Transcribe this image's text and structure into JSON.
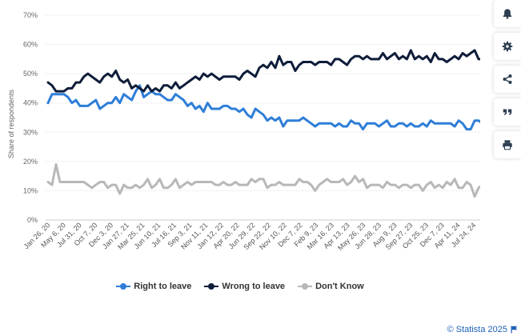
{
  "chart_data": {
    "type": "line",
    "ylabel": "Share of respondents",
    "yticks": [
      "0%",
      "10%",
      "20%",
      "30%",
      "40%",
      "50%",
      "60%",
      "70%"
    ],
    "ylim": [
      0,
      70
    ],
    "grid": true,
    "xticks": [
      "Jan 26, 20",
      "May 6, 20",
      "Jul 31, 20",
      "Oct 7, 20",
      "Dec 3, 20",
      "Jan 27, 21",
      "Mar 25, 21",
      "Jun 10, 21",
      "Jul 16, 21",
      "Sep 3, 21",
      "Nov 11, 21",
      "Jan 12, 22",
      "Apr 20, 22",
      "Jun 29, 22",
      "Sep 22, 22",
      "Nov 10, 22",
      "Dec 7, 22",
      "Feb 9, 23",
      "Mar 16, 23",
      "Apr 13, 23",
      "May 26, 23",
      "Jun 28, 23",
      "Aug 9, 23",
      "Sep 27, 23",
      "Oct 25, 23",
      "Dec 7, 23",
      "Apr 11, 24",
      "Jul 24, 24"
    ],
    "legend_position": "bottom-center",
    "series": [
      {
        "name": "Right to leave",
        "color": "#2f7ed8",
        "values": [
          40,
          43,
          43,
          43,
          43,
          42,
          40,
          41,
          39,
          39,
          39,
          40,
          41,
          38,
          39,
          40,
          40,
          42,
          40,
          43,
          42,
          41,
          44,
          46,
          42,
          43,
          44,
          43,
          43,
          42,
          41,
          41,
          43,
          42,
          41,
          39,
          40,
          38,
          39,
          37,
          40,
          38,
          38,
          38,
          39,
          39,
          38,
          38,
          37,
          38,
          36,
          35,
          38,
          37,
          36,
          34,
          35,
          34,
          35,
          32,
          34,
          34,
          34,
          34,
          35,
          34,
          33,
          32,
          33,
          33,
          33,
          33,
          32,
          33,
          32,
          32,
          34,
          33,
          33,
          31,
          33,
          33,
          33,
          32,
          33,
          34,
          32,
          32,
          33,
          33,
          32,
          33,
          32,
          32,
          33,
          32,
          34,
          33,
          33,
          33,
          33,
          33,
          32,
          34,
          33,
          31,
          31,
          34,
          34,
          33,
          30
        ]
      },
      {
        "name": "Wrong to leave",
        "color": "#0f1d3a",
        "values": [
          47,
          46,
          44,
          44,
          44,
          45,
          45,
          47,
          47,
          49,
          50,
          49,
          48,
          47,
          49,
          50,
          49,
          51,
          48,
          47,
          48,
          45,
          46,
          45,
          44,
          46,
          44,
          45,
          44,
          46,
          46,
          45,
          47,
          45,
          46,
          47,
          48,
          49,
          48,
          50,
          49,
          50,
          49,
          48,
          49,
          49,
          49,
          49,
          48,
          50,
          51,
          50,
          49,
          52,
          53,
          52,
          54,
          52,
          56,
          53,
          54,
          54,
          51,
          53,
          54,
          54,
          54,
          53,
          54,
          54,
          54,
          53,
          55,
          55,
          54,
          53,
          55,
          56,
          56,
          55,
          56,
          55,
          55,
          55,
          57,
          55,
          56,
          57,
          55,
          56,
          55,
          58,
          55,
          56,
          55,
          56,
          54,
          57,
          55,
          55,
          54,
          55,
          56,
          55,
          57,
          56,
          57,
          58,
          55,
          55,
          55
        ]
      },
      {
        "name": "Don't Know",
        "color": "#b8b8b8",
        "values": [
          13,
          12,
          19,
          13,
          13,
          13,
          13,
          13,
          13,
          13,
          12,
          11,
          12,
          13,
          13,
          11,
          12,
          12,
          9,
          12,
          11,
          11,
          12,
          11,
          12,
          14,
          11,
          12,
          14,
          11,
          11,
          12,
          14,
          11,
          12,
          13,
          12,
          13,
          13,
          13,
          13,
          13,
          12,
          12,
          13,
          12,
          12,
          13,
          12,
          12,
          12,
          14,
          13,
          14,
          14,
          11,
          12,
          12,
          13,
          12,
          12,
          12,
          12,
          14,
          13,
          13,
          12,
          10,
          12,
          13,
          14,
          13,
          13,
          13,
          14,
          12,
          13,
          15,
          13,
          14,
          11,
          12,
          12,
          12,
          11,
          13,
          12,
          12,
          11,
          12,
          12,
          11,
          12,
          12,
          10,
          12,
          13,
          11,
          12,
          11,
          13,
          12,
          14,
          11,
          11,
          13,
          12,
          8,
          11,
          12,
          14
        ]
      }
    ]
  },
  "toolbar": {
    "items": [
      {
        "name": "notification-icon"
      },
      {
        "name": "settings-icon"
      },
      {
        "name": "share-icon"
      },
      {
        "name": "quote-icon"
      },
      {
        "name": "print-icon"
      }
    ]
  },
  "credit": {
    "text": "© Statista 2025",
    "icon": "flag-icon"
  }
}
